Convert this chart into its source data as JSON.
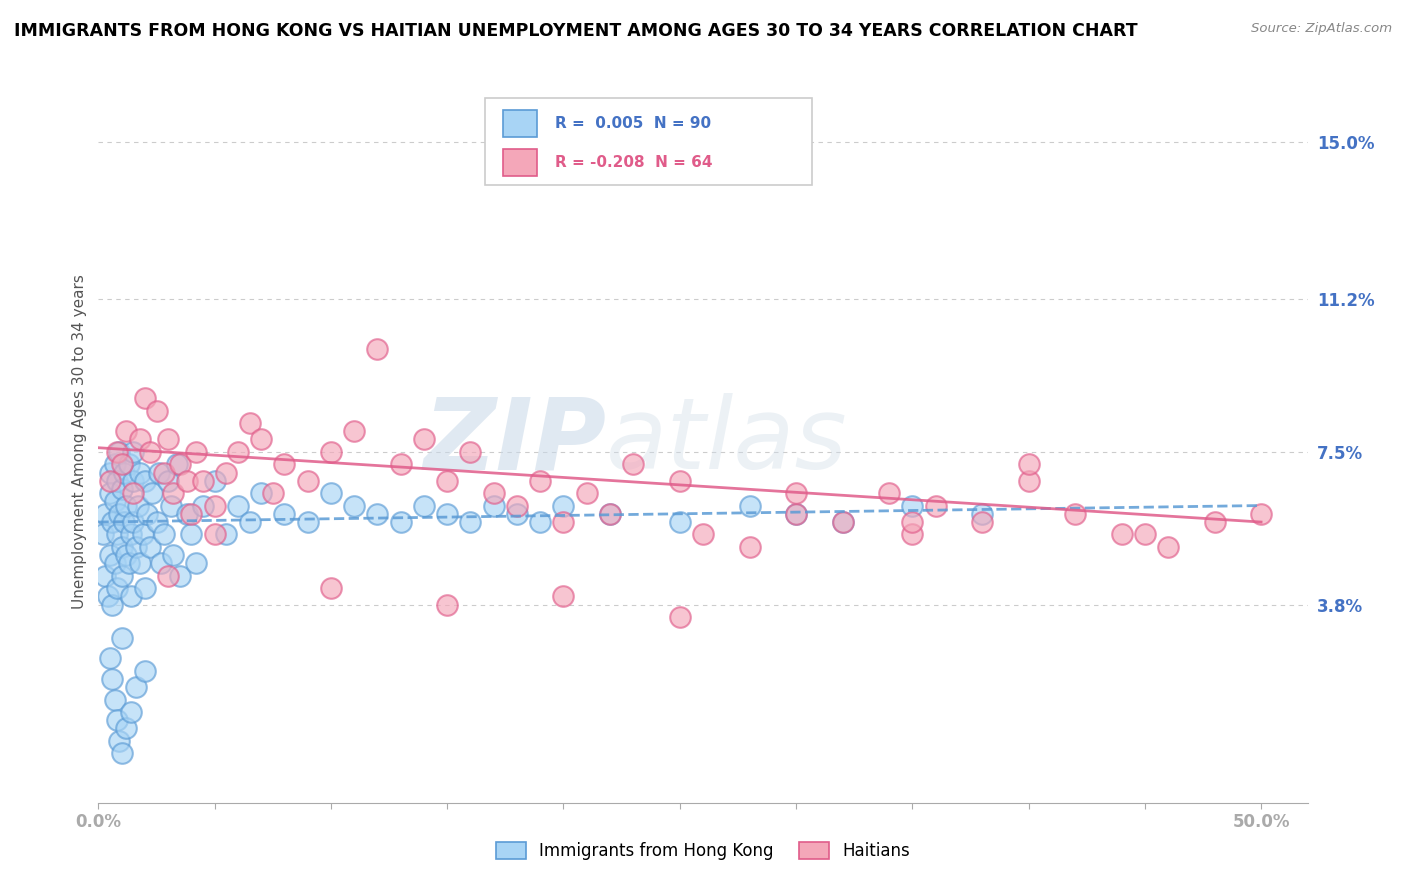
{
  "title": "IMMIGRANTS FROM HONG KONG VS HAITIAN UNEMPLOYMENT AMONG AGES 30 TO 34 YEARS CORRELATION CHART",
  "source": "Source: ZipAtlas.com",
  "ylabel": "Unemployment Among Ages 30 to 34 years",
  "xlim": [
    0.0,
    0.52
  ],
  "ylim": [
    -0.01,
    0.165
  ],
  "ytick_positions": [
    0.038,
    0.075,
    0.112,
    0.15
  ],
  "ytick_labels": [
    "3.8%",
    "7.5%",
    "11.2%",
    "15.0%"
  ],
  "color_blue_fill": "#A8D4F5",
  "color_blue_edge": "#5B9BD5",
  "color_pink_fill": "#F4A7B9",
  "color_pink_edge": "#E05C8A",
  "color_blue_line": "#5B9BD5",
  "color_pink_line": "#E05C8A",
  "watermark_zip": "ZIP",
  "watermark_atlas": "atlas",
  "blue_scatter_x": [
    0.002,
    0.003,
    0.003,
    0.004,
    0.005,
    0.005,
    0.005,
    0.006,
    0.006,
    0.007,
    0.007,
    0.007,
    0.008,
    0.008,
    0.008,
    0.009,
    0.009,
    0.01,
    0.01,
    0.01,
    0.01,
    0.011,
    0.011,
    0.012,
    0.012,
    0.013,
    0.013,
    0.014,
    0.014,
    0.015,
    0.015,
    0.015,
    0.016,
    0.017,
    0.018,
    0.018,
    0.019,
    0.02,
    0.02,
    0.021,
    0.022,
    0.023,
    0.025,
    0.026,
    0.027,
    0.028,
    0.03,
    0.031,
    0.032,
    0.034,
    0.035,
    0.038,
    0.04,
    0.042,
    0.045,
    0.05,
    0.055,
    0.06,
    0.065,
    0.07,
    0.08,
    0.09,
    0.1,
    0.11,
    0.12,
    0.13,
    0.14,
    0.15,
    0.16,
    0.17,
    0.18,
    0.19,
    0.2,
    0.22,
    0.25,
    0.28,
    0.3,
    0.32,
    0.35,
    0.38,
    0.005,
    0.006,
    0.007,
    0.008,
    0.009,
    0.01,
    0.012,
    0.014,
    0.016,
    0.02
  ],
  "blue_scatter_y": [
    0.055,
    0.06,
    0.045,
    0.04,
    0.07,
    0.05,
    0.065,
    0.058,
    0.038,
    0.063,
    0.072,
    0.048,
    0.055,
    0.068,
    0.042,
    0.06,
    0.075,
    0.052,
    0.066,
    0.045,
    0.03,
    0.058,
    0.07,
    0.05,
    0.062,
    0.048,
    0.072,
    0.055,
    0.04,
    0.068,
    0.058,
    0.075,
    0.052,
    0.062,
    0.07,
    0.048,
    0.055,
    0.068,
    0.042,
    0.06,
    0.052,
    0.065,
    0.058,
    0.07,
    0.048,
    0.055,
    0.068,
    0.062,
    0.05,
    0.072,
    0.045,
    0.06,
    0.055,
    0.048,
    0.062,
    0.068,
    0.055,
    0.062,
    0.058,
    0.065,
    0.06,
    0.058,
    0.065,
    0.062,
    0.06,
    0.058,
    0.062,
    0.06,
    0.058,
    0.062,
    0.06,
    0.058,
    0.062,
    0.06,
    0.058,
    0.062,
    0.06,
    0.058,
    0.062,
    0.06,
    0.025,
    0.02,
    0.015,
    0.01,
    0.005,
    0.002,
    0.008,
    0.012,
    0.018,
    0.022
  ],
  "blue_trend_x0": 0.0,
  "blue_trend_x1": 0.5,
  "blue_trend_y0": 0.058,
  "blue_trend_y1": 0.062,
  "pink_trend_x0": 0.0,
  "pink_trend_x1": 0.5,
  "pink_trend_y0": 0.076,
  "pink_trend_y1": 0.058,
  "pink_scatter_x": [
    0.005,
    0.008,
    0.01,
    0.012,
    0.015,
    0.018,
    0.02,
    0.022,
    0.025,
    0.028,
    0.03,
    0.032,
    0.035,
    0.038,
    0.04,
    0.042,
    0.045,
    0.05,
    0.055,
    0.06,
    0.065,
    0.07,
    0.075,
    0.08,
    0.09,
    0.1,
    0.11,
    0.12,
    0.13,
    0.14,
    0.15,
    0.16,
    0.17,
    0.18,
    0.19,
    0.2,
    0.21,
    0.22,
    0.23,
    0.25,
    0.26,
    0.28,
    0.3,
    0.32,
    0.34,
    0.35,
    0.36,
    0.38,
    0.4,
    0.42,
    0.44,
    0.46,
    0.48,
    0.3,
    0.35,
    0.4,
    0.45,
    0.5,
    0.25,
    0.2,
    0.15,
    0.1,
    0.05,
    0.03
  ],
  "pink_scatter_y": [
    0.068,
    0.075,
    0.072,
    0.08,
    0.065,
    0.078,
    0.088,
    0.075,
    0.085,
    0.07,
    0.078,
    0.065,
    0.072,
    0.068,
    0.06,
    0.075,
    0.068,
    0.062,
    0.07,
    0.075,
    0.082,
    0.078,
    0.065,
    0.072,
    0.068,
    0.075,
    0.08,
    0.1,
    0.072,
    0.078,
    0.068,
    0.075,
    0.065,
    0.062,
    0.068,
    0.058,
    0.065,
    0.06,
    0.072,
    0.068,
    0.055,
    0.052,
    0.06,
    0.058,
    0.065,
    0.055,
    0.062,
    0.058,
    0.068,
    0.06,
    0.055,
    0.052,
    0.058,
    0.065,
    0.058,
    0.072,
    0.055,
    0.06,
    0.035,
    0.04,
    0.038,
    0.042,
    0.055,
    0.045
  ]
}
